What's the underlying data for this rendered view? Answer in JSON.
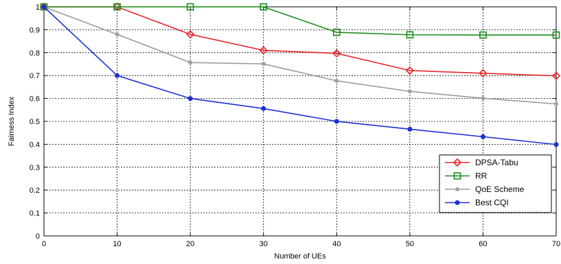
{
  "chart_data": {
    "type": "line",
    "title": "",
    "xlabel": "Number of UEs",
    "ylabel": "Fairness Index",
    "xlim": [
      0,
      70
    ],
    "ylim": [
      0,
      1
    ],
    "x_ticks": [
      "0",
      "10",
      "20",
      "30",
      "40",
      "50",
      "60",
      "70"
    ],
    "y_ticks": [
      "0",
      "0.1",
      "0.2",
      "0.3",
      "0.4",
      "0.5",
      "0.6",
      "0.7",
      "0.8",
      "0.9",
      "1"
    ],
    "grid": true,
    "legend_position": "bottom-right",
    "x": [
      0,
      10,
      20,
      30,
      40,
      50,
      60,
      70
    ],
    "series": [
      {
        "name": "DPSA-Tabu",
        "color": "#e8262b",
        "marker": "diamond",
        "values": [
          1.0,
          1.0,
          0.88,
          0.81,
          0.797,
          0.722,
          0.71,
          0.699
        ]
      },
      {
        "name": "RR",
        "color": "#1a8a1a",
        "marker": "square",
        "values": [
          1.0,
          1.0,
          1.0,
          1.0,
          0.889,
          0.878,
          0.877,
          0.877
        ]
      },
      {
        "name": "QoE Scheme",
        "color": "#9a9a9a",
        "marker": "star",
        "values": [
          1.0,
          0.88,
          0.757,
          0.751,
          0.677,
          0.631,
          0.601,
          0.576
        ]
      },
      {
        "name": "Best CQI",
        "color": "#1a2fd6",
        "marker": "dot",
        "values": [
          1.0,
          0.7,
          0.6,
          0.556,
          0.5,
          0.466,
          0.433,
          0.399
        ]
      }
    ]
  }
}
